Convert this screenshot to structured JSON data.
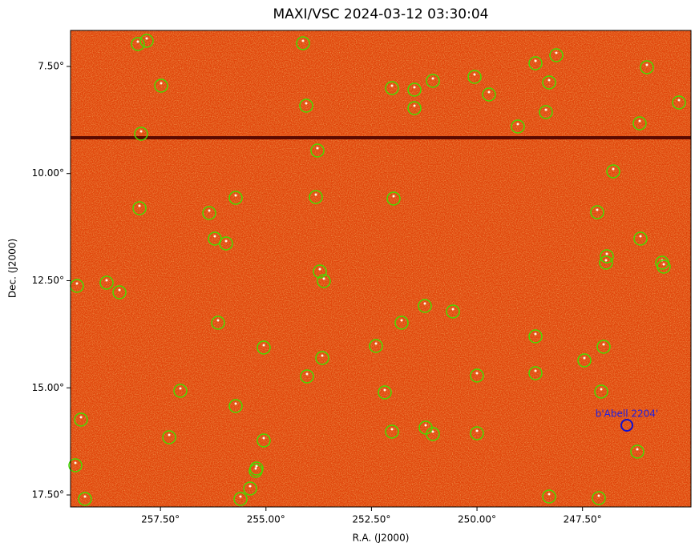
{
  "chart_data": {
    "type": "image",
    "title": "MAXI/VSC 2024-03-12 03:30:04",
    "x_label": "R.A. (J2000)",
    "y_label": "Dec. (J2000)",
    "xlim": [
      259.63,
      244.93
    ],
    "ylim": [
      6.66,
      17.78
    ],
    "xticks": [
      {
        "value": 257.5,
        "label": "257.50°"
      },
      {
        "value": 255,
        "label": "255.00°"
      },
      {
        "value": 252.5,
        "label": "252.50°"
      },
      {
        "value": 250,
        "label": "250.00°"
      },
      {
        "value": 247.5,
        "label": "247.50°"
      }
    ],
    "yticks": [
      {
        "value": 7.5,
        "label": "7.50°"
      },
      {
        "value": 10,
        "label": "10.00°"
      },
      {
        "value": 12.5,
        "label": "12.50°"
      },
      {
        "value": 15,
        "label": "15.00°"
      },
      {
        "value": 17.5,
        "label": "17.50°"
      }
    ],
    "annotation": "b'Abell 2204'"
  }
}
